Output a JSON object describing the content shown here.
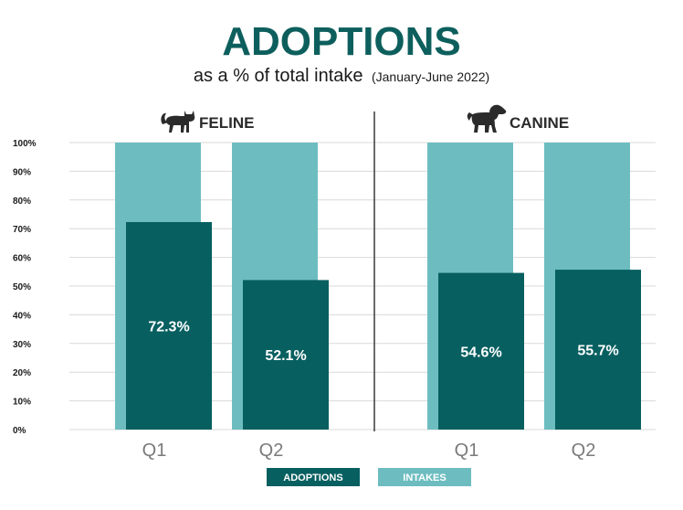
{
  "chart_data": {
    "type": "bar",
    "title": "ADOPTIONS",
    "subtitle_main": "as a % of total intake",
    "subtitle_period": "(January-June 2022)",
    "ylim": [
      0,
      100
    ],
    "yticks": [
      0,
      10,
      20,
      30,
      40,
      50,
      60,
      70,
      80,
      90,
      100
    ],
    "ytick_labels": [
      "0%",
      "10%",
      "20%",
      "30%",
      "40%",
      "50%",
      "60%",
      "70%",
      "80%",
      "90%",
      "100%"
    ],
    "groups": [
      {
        "label": "FELINE",
        "icon": "cat-icon",
        "categories": [
          "Q1",
          "Q2"
        ],
        "series": [
          {
            "name": "INTAKES",
            "values": [
              100,
              100
            ]
          },
          {
            "name": "ADOPTIONS",
            "values": [
              72.3,
              52.1
            ],
            "labels": [
              "72.3%",
              "52.1%"
            ]
          }
        ]
      },
      {
        "label": "CANINE",
        "icon": "dog-icon",
        "categories": [
          "Q1",
          "Q2"
        ],
        "series": [
          {
            "name": "INTAKES",
            "values": [
              100,
              100
            ]
          },
          {
            "name": "ADOPTIONS",
            "values": [
              54.6,
              55.7
            ],
            "labels": [
              "54.6%",
              "55.7%"
            ]
          }
        ]
      }
    ],
    "legend": {
      "placement": "bottom-center",
      "items": [
        {
          "name": "ADOPTIONS",
          "color": "#075f60"
        },
        {
          "name": "INTAKES",
          "color": "#6dbdc0"
        }
      ]
    },
    "grid": true
  },
  "colors": {
    "title": "#0d5f5d",
    "text": "#1a1a1a",
    "adoptions": "#075f60",
    "intakes": "#6dbdc0",
    "grid": "#d9d9d9",
    "divider": "#3a3a3a",
    "axis_label": "#7a7a7a",
    "icon": "#2b2b2b"
  }
}
